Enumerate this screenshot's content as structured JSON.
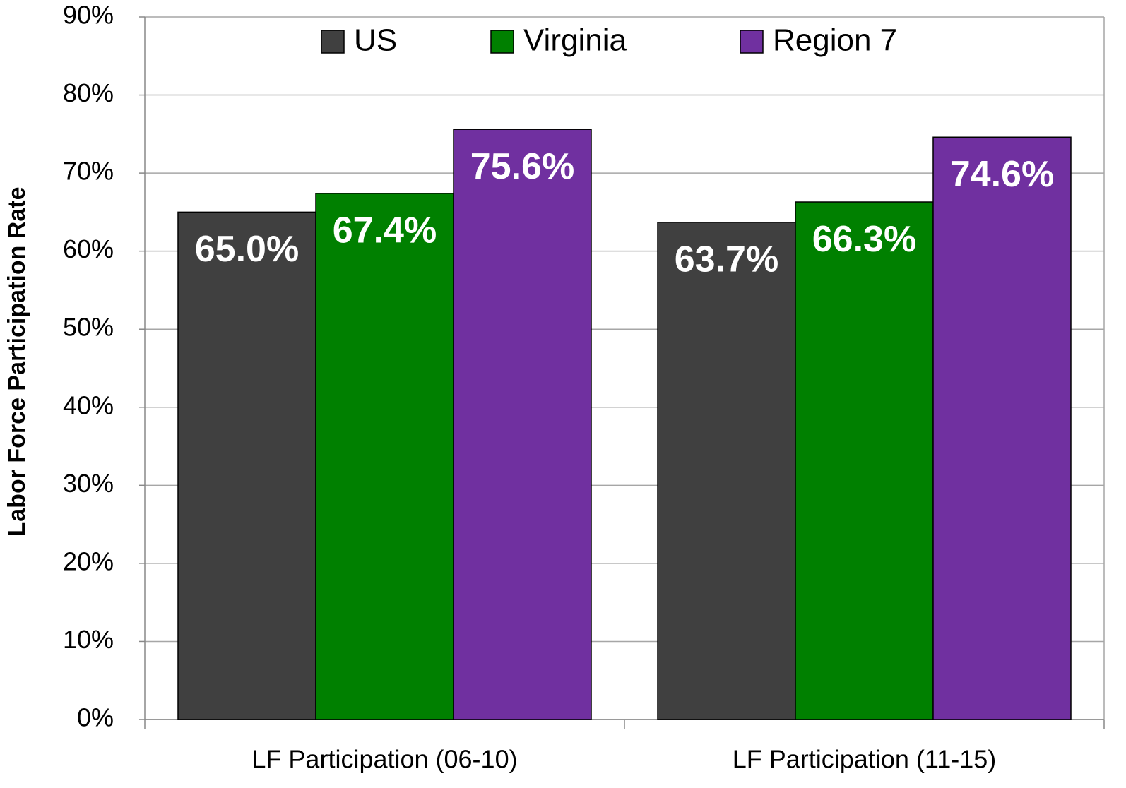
{
  "chart_data": {
    "type": "bar",
    "y_label": "Labor Force Participation Rate",
    "categories": [
      "LF Participation (06-10)",
      "LF Participation (11-15)"
    ],
    "series": [
      {
        "name": "US",
        "color": "#404040",
        "values": [
          65.0,
          63.7
        ],
        "value_labels": [
          "65.0%",
          "63.7%"
        ]
      },
      {
        "name": "Virginia",
        "color": "#008000",
        "values": [
          67.4,
          66.3
        ],
        "value_labels": [
          "67.4%",
          "66.3%"
        ]
      },
      {
        "name": "Region 7",
        "color": "#7030a0",
        "values": [
          75.6,
          74.6
        ],
        "value_labels": [
          "75.6%",
          "74.6%"
        ]
      }
    ],
    "ylim": [
      0,
      90
    ],
    "yticks": [
      {
        "value": 0,
        "label": "0%"
      },
      {
        "value": 10,
        "label": "10%"
      },
      {
        "value": 20,
        "label": "20%"
      },
      {
        "value": 30,
        "label": "30%"
      },
      {
        "value": 40,
        "label": "40%"
      },
      {
        "value": 50,
        "label": "50%"
      },
      {
        "value": 60,
        "label": "60%"
      },
      {
        "value": 70,
        "label": "70%"
      },
      {
        "value": 80,
        "label": "80%"
      },
      {
        "value": 90,
        "label": "90%"
      }
    ],
    "grid": true,
    "legend": "top"
  }
}
